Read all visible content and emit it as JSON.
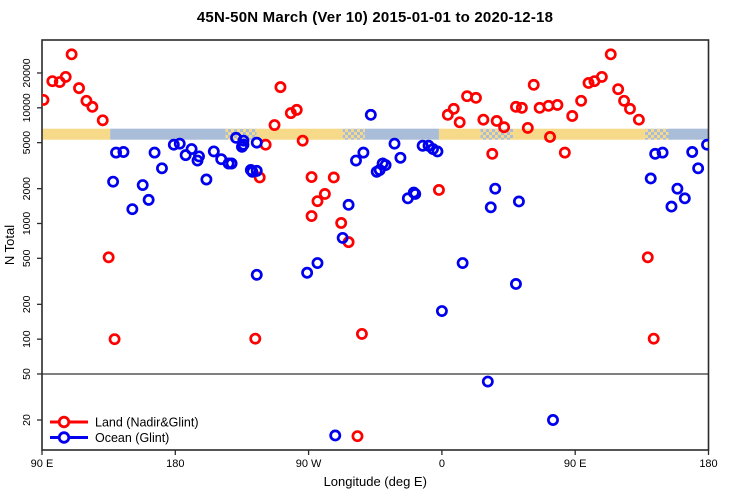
{
  "chart_data": {
    "type": "scatter",
    "title": "45N-50N March (Ver 10)   2015-01-01 to 2020-12-18",
    "xlabel": "Longitude (deg E)",
    "ylabel": "N Total",
    "x_axis": {
      "min": 90,
      "max": 540,
      "ticks": [
        {
          "value": 90,
          "label": "90 E"
        },
        {
          "value": 180,
          "label": "180"
        },
        {
          "value": 270,
          "label": "90 W"
        },
        {
          "value": 360,
          "label": "0"
        },
        {
          "value": 450,
          "label": "90 E"
        },
        {
          "value": 540,
          "label": "180"
        }
      ]
    },
    "y_axis": {
      "scale": "log",
      "top_value": 20000,
      "ticks": [
        20000,
        10000,
        5000,
        2000,
        1000,
        500,
        200,
        100,
        50,
        20
      ]
    },
    "reference_line_y": 50,
    "surface_band": {
      "value_top": 6600,
      "value_bottom": 5300,
      "segments": [
        {
          "from": 90,
          "to": 136,
          "type": "land"
        },
        {
          "from": 136,
          "to": 214,
          "type": "ocean"
        },
        {
          "from": 214,
          "to": 235,
          "type": "mixed"
        },
        {
          "from": 235,
          "to": 293,
          "type": "land"
        },
        {
          "from": 293,
          "to": 308,
          "type": "mixed"
        },
        {
          "from": 308,
          "to": 358,
          "type": "ocean"
        },
        {
          "from": 358,
          "to": 386,
          "type": "land"
        },
        {
          "from": 386,
          "to": 408,
          "type": "mixed"
        },
        {
          "from": 408,
          "to": 497,
          "type": "land"
        },
        {
          "from": 497,
          "to": 513,
          "type": "mixed"
        },
        {
          "from": 513,
          "to": 540,
          "type": "ocean"
        }
      ]
    },
    "legend": {
      "position": "bottom-left",
      "items": [
        {
          "label": "Land (Nadir&Glint)",
          "color": "#FF0000"
        },
        {
          "label": "Ocean (Glint)",
          "color": "#0000EE"
        }
      ]
    },
    "series": [
      {
        "name": "Land (Nadir&Glint)",
        "color": "#FF0000",
        "points": [
          [
            110,
            29000
          ],
          [
            97,
            17000
          ],
          [
            102,
            16700
          ],
          [
            106,
            18500
          ],
          [
            91,
            11700
          ],
          [
            115,
            14800
          ],
          [
            120,
            11500
          ],
          [
            124,
            10200
          ],
          [
            131,
            7800
          ],
          [
            241,
            4800
          ],
          [
            237,
            2500
          ],
          [
            135,
            510
          ],
          [
            139,
            100
          ],
          [
            251,
            15100
          ],
          [
            258,
            9000
          ],
          [
            262,
            9600
          ],
          [
            247,
            7100
          ],
          [
            266,
            5200
          ],
          [
            272,
            2520
          ],
          [
            287,
            2500
          ],
          [
            281,
            1800
          ],
          [
            276,
            1560
          ],
          [
            272,
            1160
          ],
          [
            292,
            1010
          ],
          [
            297,
            690
          ],
          [
            234,
            101
          ],
          [
            306,
            111
          ],
          [
            303,
            14.5
          ],
          [
            358,
            1950
          ],
          [
            377,
            12600
          ],
          [
            383,
            12200
          ],
          [
            368,
            9800
          ],
          [
            364,
            8700
          ],
          [
            372,
            7500
          ],
          [
            388,
            7900
          ],
          [
            397,
            7700
          ],
          [
            402,
            6800
          ],
          [
            422,
            15800
          ],
          [
            410,
            10200
          ],
          [
            414,
            10000
          ],
          [
            426,
            10000
          ],
          [
            432,
            10400
          ],
          [
            438,
            10600
          ],
          [
            418,
            6700
          ],
          [
            433,
            5600
          ],
          [
            443,
            4100
          ],
          [
            474,
            29000
          ],
          [
            459,
            16400
          ],
          [
            463,
            17000
          ],
          [
            468,
            18500
          ],
          [
            479,
            14500
          ],
          [
            483,
            11500
          ],
          [
            487,
            9800
          ],
          [
            493,
            7900
          ],
          [
            448,
            8500
          ],
          [
            454,
            11500
          ],
          [
            499,
            510
          ],
          [
            503,
            101
          ],
          [
            394,
            4000
          ]
        ]
      },
      {
        "name": "Ocean (Glint)",
        "color": "#0000EE",
        "points": [
          [
            140,
            4100
          ],
          [
            145,
            4150
          ],
          [
            166,
            4100
          ],
          [
            179,
            4800
          ],
          [
            183,
            4900
          ],
          [
            191,
            4400
          ],
          [
            196,
            3800
          ],
          [
            195,
            3500
          ],
          [
            187,
            3900
          ],
          [
            206,
            4200
          ],
          [
            211,
            3600
          ],
          [
            216,
            3300
          ],
          [
            201,
            2400
          ],
          [
            232,
            2800
          ],
          [
            235,
            5000
          ],
          [
            226,
            4800
          ],
          [
            138,
            2300
          ],
          [
            158,
            2150
          ],
          [
            162,
            1600
          ],
          [
            151,
            1330
          ],
          [
            171,
            3000
          ],
          [
            235,
            360
          ],
          [
            221,
            5500
          ],
          [
            226,
            5200
          ],
          [
            225,
            4600
          ],
          [
            218,
            3300
          ],
          [
            231,
            2900
          ],
          [
            235,
            2850
          ],
          [
            312,
            8700
          ],
          [
            307,
            4100
          ],
          [
            302,
            3500
          ],
          [
            316,
            2800
          ],
          [
            322,
            3200
          ],
          [
            328,
            4900
          ],
          [
            332,
            3700
          ],
          [
            347,
            4700
          ],
          [
            351,
            4700
          ],
          [
            354,
            4400
          ],
          [
            357,
            4200
          ],
          [
            320,
            3300
          ],
          [
            318,
            2900
          ],
          [
            396,
            2000
          ],
          [
            341,
            1850
          ],
          [
            337,
            1650
          ],
          [
            342,
            1800
          ],
          [
            412,
            1550
          ],
          [
            393,
            1380
          ],
          [
            374,
            455
          ],
          [
            410,
            300
          ],
          [
            360,
            175
          ],
          [
            391,
            43
          ],
          [
            435,
            20
          ],
          [
            504,
            4000
          ],
          [
            509,
            4100
          ],
          [
            529,
            4150
          ],
          [
            539,
            4800
          ],
          [
            533,
            3000
          ],
          [
            501,
            2450
          ],
          [
            519,
            2000
          ],
          [
            524,
            1650
          ],
          [
            515,
            1400
          ],
          [
            288,
            14.7
          ],
          [
            297,
            1450
          ],
          [
            293,
            750
          ],
          [
            276,
            455
          ],
          [
            269,
            375
          ]
        ]
      }
    ]
  },
  "colors": {
    "land_band": "#F7D98A",
    "ocean_band": "#A9BDD8",
    "land_points": "#FF0000",
    "ocean_points": "#0000EE",
    "axis": "#2b2b2b",
    "background": "#FFFFFF"
  }
}
